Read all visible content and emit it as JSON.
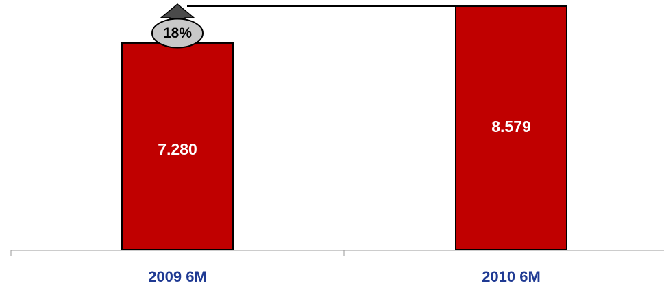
{
  "chart_data": {
    "type": "bar",
    "categories": [
      "2009 6M",
      "2010 6M"
    ],
    "values": [
      7.28,
      8.579
    ],
    "data_labels": [
      "7.280",
      "8.579"
    ],
    "ylim": [
      0,
      8.7
    ],
    "grid": false,
    "legend": "none",
    "annotation": {
      "label": "18%",
      "from_category": "2009 6M",
      "to_category": "2010 6M",
      "type": "growth-arrow"
    }
  },
  "colors": {
    "bar": "#c00000",
    "bar_stroke": "#000000",
    "category_text": "#1f3a93",
    "axis": "#999999",
    "arrow": "#4a4a4a",
    "badge": "#c8c8c8"
  }
}
